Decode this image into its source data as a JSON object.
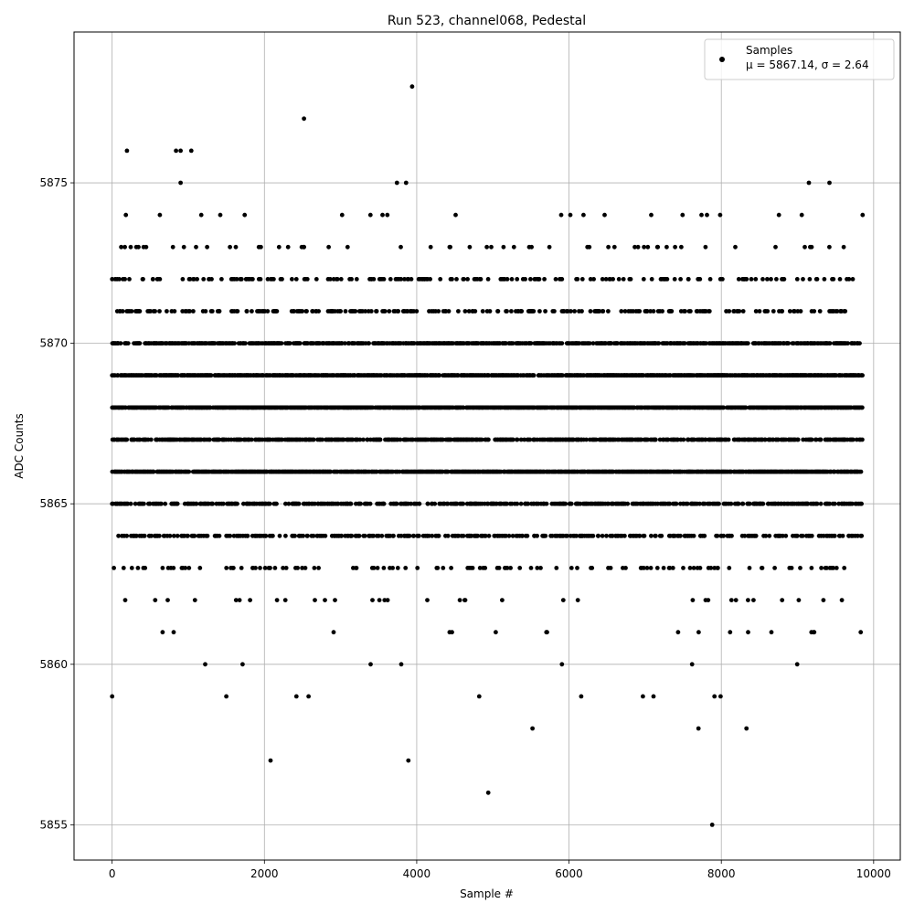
{
  "chart_data": {
    "type": "scatter",
    "title": "Run 523, channel068, Pedestal",
    "xlabel": "Sample #",
    "ylabel": "ADC Counts",
    "xlim": [
      -500,
      10350
    ],
    "ylim": [
      5853.9,
      5879.7
    ],
    "grid": true,
    "xticks": [
      0,
      2000,
      4000,
      6000,
      8000,
      10000
    ],
    "xtick_labels": [
      "0",
      "2000",
      "4000",
      "6000",
      "8000",
      "10000"
    ],
    "yticks": [
      5855,
      5860,
      5865,
      5870,
      5875
    ],
    "ytick_labels": [
      "5855",
      "5860",
      "5865",
      "5870",
      "5875"
    ],
    "marker_color": "#000000",
    "legend": {
      "placement": "top-right",
      "label": "Samples",
      "stats": "μ = 5867.14, σ = 2.64"
    },
    "n_samples": 9850,
    "mean": 5867.14,
    "std": 2.64,
    "outliers": [
      {
        "x": 0,
        "y": 5859
      },
      {
        "x": 195,
        "y": 5876
      },
      {
        "x": 840,
        "y": 5876
      },
      {
        "x": 900,
        "y": 5876
      },
      {
        "x": 1040,
        "y": 5876
      },
      {
        "x": 900,
        "y": 5875
      },
      {
        "x": 1500,
        "y": 5859
      },
      {
        "x": 2080,
        "y": 5857
      },
      {
        "x": 2520,
        "y": 5877
      },
      {
        "x": 2420,
        "y": 5859
      },
      {
        "x": 2580,
        "y": 5859
      },
      {
        "x": 3740,
        "y": 5875
      },
      {
        "x": 3860,
        "y": 5875
      },
      {
        "x": 3890,
        "y": 5857
      },
      {
        "x": 3940,
        "y": 5878
      },
      {
        "x": 4820,
        "y": 5859
      },
      {
        "x": 4940,
        "y": 5856
      },
      {
        "x": 5520,
        "y": 5858
      },
      {
        "x": 6160,
        "y": 5859
      },
      {
        "x": 6970,
        "y": 5859
      },
      {
        "x": 7110,
        "y": 5859
      },
      {
        "x": 7700,
        "y": 5858
      },
      {
        "x": 7880,
        "y": 5855
      },
      {
        "x": 7910,
        "y": 5859
      },
      {
        "x": 7990,
        "y": 5859
      },
      {
        "x": 8330,
        "y": 5858
      },
      {
        "x": 9150,
        "y": 5875
      },
      {
        "x": 9420,
        "y": 5875
      }
    ],
    "levels": [
      {
        "y": 5860,
        "density": 0.003
      },
      {
        "y": 5861,
        "density": 0.012
      },
      {
        "y": 5862,
        "density": 0.035
      },
      {
        "y": 5863,
        "density": 0.09
      },
      {
        "y": 5864,
        "density": 0.28
      },
      {
        "y": 5865,
        "density": 0.38
      },
      {
        "y": 5866,
        "density": 0.75
      },
      {
        "y": 5867,
        "density": 0.45
      },
      {
        "y": 5868,
        "density": 0.75
      },
      {
        "y": 5869,
        "density": 0.7
      },
      {
        "y": 5870,
        "density": 0.55
      },
      {
        "y": 5871,
        "density": 0.22
      },
      {
        "y": 5872,
        "density": 0.14
      },
      {
        "y": 5873,
        "density": 0.05
      },
      {
        "y": 5874,
        "density": 0.015
      }
    ]
  }
}
